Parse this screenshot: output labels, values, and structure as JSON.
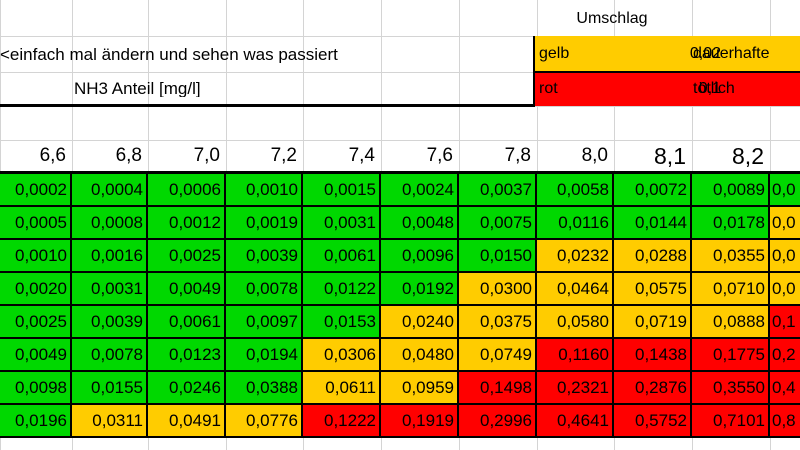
{
  "sheet": {
    "note_text": "<einfach mal ändern und sehen was passiert",
    "nh3_label": "NH3 Anteil [mg/l]",
    "legend": {
      "title": "Umschlag",
      "rows": [
        {
          "name": "gelb",
          "value": "0,02",
          "desc": "dauerhafte",
          "color": "#ffcc00"
        },
        {
          "name": "rot",
          "value": "0,1",
          "desc": "tötlich",
          "color": "#ff0000"
        }
      ]
    },
    "ph_headers": [
      "6,6",
      "6,8",
      "7,0",
      "7,2",
      "7,4",
      "7,6",
      "7,8",
      "8,0",
      "8,1",
      "8,2"
    ],
    "rows": [
      {
        "values": [
          "0,0002",
          "0,0004",
          "0,0006",
          "0,0010",
          "0,0015",
          "0,0024",
          "0,0037",
          "0,0058",
          "0,0072",
          "0,0089",
          "0,0"
        ],
        "colors": [
          "g",
          "g",
          "g",
          "g",
          "g",
          "g",
          "g",
          "g",
          "g",
          "g",
          "g"
        ]
      },
      {
        "values": [
          "0,0005",
          "0,0008",
          "0,0012",
          "0,0019",
          "0,0031",
          "0,0048",
          "0,0075",
          "0,0116",
          "0,0144",
          "0,0178",
          "0,0"
        ],
        "colors": [
          "g",
          "g",
          "g",
          "g",
          "g",
          "g",
          "g",
          "g",
          "g",
          "g",
          "y"
        ]
      },
      {
        "values": [
          "0,0010",
          "0,0016",
          "0,0025",
          "0,0039",
          "0,0061",
          "0,0096",
          "0,0150",
          "0,0232",
          "0,0288",
          "0,0355",
          "0,0"
        ],
        "colors": [
          "g",
          "g",
          "g",
          "g",
          "g",
          "g",
          "g",
          "y",
          "y",
          "y",
          "y"
        ]
      },
      {
        "values": [
          "0,0020",
          "0,0031",
          "0,0049",
          "0,0078",
          "0,0122",
          "0,0192",
          "0,0300",
          "0,0464",
          "0,0575",
          "0,0710",
          "0,0"
        ],
        "colors": [
          "g",
          "g",
          "g",
          "g",
          "g",
          "g",
          "y",
          "y",
          "y",
          "y",
          "y"
        ]
      },
      {
        "values": [
          "0,0025",
          "0,0039",
          "0,0061",
          "0,0097",
          "0,0153",
          "0,0240",
          "0,0375",
          "0,0580",
          "0,0719",
          "0,0888",
          "0,1"
        ],
        "colors": [
          "g",
          "g",
          "g",
          "g",
          "g",
          "y",
          "y",
          "y",
          "y",
          "y",
          "r"
        ]
      },
      {
        "values": [
          "0,0049",
          "0,0078",
          "0,0123",
          "0,0194",
          "0,0306",
          "0,0480",
          "0,0749",
          "0,1160",
          "0,1438",
          "0,1775",
          "0,2"
        ],
        "colors": [
          "g",
          "g",
          "g",
          "g",
          "y",
          "y",
          "y",
          "r",
          "r",
          "r",
          "r"
        ]
      },
      {
        "values": [
          "0,0098",
          "0,0155",
          "0,0246",
          "0,0388",
          "0,0611",
          "0,0959",
          "0,1498",
          "0,2321",
          "0,2876",
          "0,3550",
          "0,4"
        ],
        "colors": [
          "g",
          "g",
          "g",
          "g",
          "y",
          "y",
          "r",
          "r",
          "r",
          "r",
          "r"
        ]
      },
      {
        "values": [
          "0,0196",
          "0,0311",
          "0,0491",
          "0,0776",
          "0,1222",
          "0,1919",
          "0,2996",
          "0,4641",
          "0,5752",
          "0,7101",
          "0,8"
        ],
        "colors": [
          "g",
          "y",
          "y",
          "y",
          "r",
          "r",
          "r",
          "r",
          "r",
          "r",
          "r"
        ]
      }
    ]
  }
}
